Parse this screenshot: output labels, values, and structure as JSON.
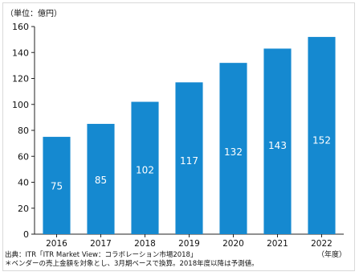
{
  "chart_data": {
    "type": "bar",
    "unit_label": "（単位：億円）",
    "xunit_label": "（年度）",
    "categories": [
      "2016",
      "2017",
      "2018",
      "2019",
      "2020",
      "2021",
      "2022"
    ],
    "values": [
      75,
      85,
      102,
      117,
      132,
      143,
      152
    ],
    "ylim": [
      0,
      160
    ],
    "yticks": [
      0,
      20,
      40,
      60,
      80,
      100,
      120,
      140,
      160
    ],
    "grid": false,
    "bar_color": "#1589d0",
    "label_color": "#ffffff"
  },
  "notes": {
    "source": "出典：ITR「ITR Market View：コラボレーション市場2018」",
    "footnote": "＊ベンダーの売上金額を対象とし、3月期ベースで換算。2018年度以降は予測値。"
  }
}
